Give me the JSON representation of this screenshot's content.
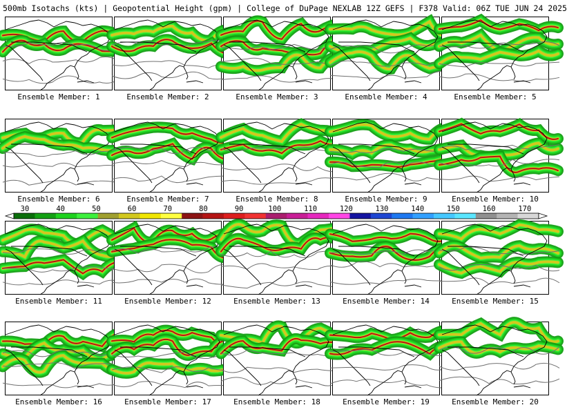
{
  "header": {
    "title": "500mb Isotachs (kts) | Geopotential Height (gpm) | College of DuPage NEXLAB   12Z GEFS | F378 Valid: 06Z TUE JUN 24 2025"
  },
  "colorbar": {
    "labels": [
      "30",
      "40",
      "50",
      "60",
      "70",
      "80",
      "90",
      "100",
      "110",
      "120",
      "130",
      "140",
      "150",
      "160",
      "170"
    ],
    "colors": [
      "#0a6e0a",
      "#13a013",
      "#1ed21e",
      "#3cf03c",
      "#a0a030",
      "#d2c81e",
      "#f0e600",
      "#ffff40",
      "#8c1414",
      "#b41414",
      "#dc1e1e",
      "#f03232",
      "#aa1e6e",
      "#c81e96",
      "#e628be",
      "#ff46e6",
      "#1414a0",
      "#1e46d2",
      "#1e78f0",
      "#32a0ff",
      "#46c8ff",
      "#5ae6ff",
      "#909090",
      "#b4b4b4",
      "#d8d8d8"
    ]
  },
  "panels": [
    {
      "label": "Ensemble Member: 1"
    },
    {
      "label": "Ensemble Member: 2"
    },
    {
      "label": "Ensemble Member: 3"
    },
    {
      "label": "Ensemble Member: 4"
    },
    {
      "label": "Ensemble Member: 5"
    },
    {
      "label": "Ensemble Member: 6"
    },
    {
      "label": "Ensemble Member: 7"
    },
    {
      "label": "Ensemble Member: 8"
    },
    {
      "label": "Ensemble Member: 9"
    },
    {
      "label": "Ensemble Member: 10"
    },
    {
      "label": "Ensemble Member: 11"
    },
    {
      "label": "Ensemble Member: 12"
    },
    {
      "label": "Ensemble Member: 13"
    },
    {
      "label": "Ensemble Member: 14"
    },
    {
      "label": "Ensemble Member: 15"
    },
    {
      "label": "Ensemble Member: 16"
    },
    {
      "label": "Ensemble Member: 17"
    },
    {
      "label": "Ensemble Member: 18"
    },
    {
      "label": "Ensemble Member: 19"
    },
    {
      "label": "Ensemble Member: 20"
    }
  ]
}
